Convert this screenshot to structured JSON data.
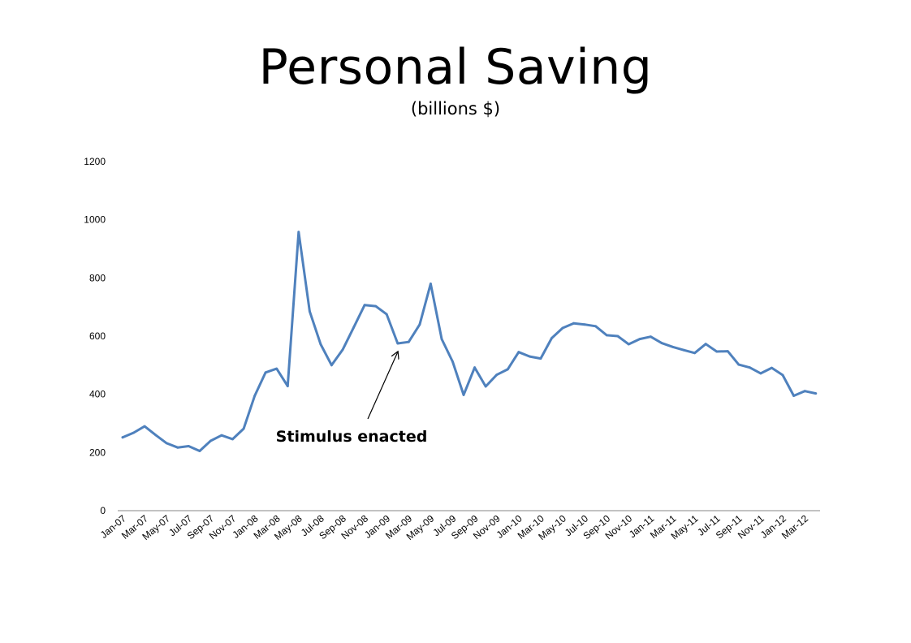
{
  "title": "Personal Saving",
  "subtitle": "(billions $)",
  "chart_data": {
    "type": "line",
    "title": "Personal Saving",
    "subtitle": "(billions $)",
    "ylim": [
      0,
      1200
    ],
    "yticks": [
      0,
      200,
      400,
      600,
      800,
      1000,
      1200
    ],
    "grid": false,
    "legend": "none",
    "line_color": "#4F81BD",
    "x": [
      "Jan-07",
      "Feb-07",
      "Mar-07",
      "Apr-07",
      "May-07",
      "Jun-07",
      "Jul-07",
      "Aug-07",
      "Sep-07",
      "Oct-07",
      "Nov-07",
      "Dec-07",
      "Jan-08",
      "Feb-08",
      "Mar-08",
      "Apr-08",
      "May-08",
      "Jun-08",
      "Jul-08",
      "Aug-08",
      "Sep-08",
      "Oct-08",
      "Nov-08",
      "Dec-08",
      "Jan-09",
      "Feb-09",
      "Mar-09",
      "Apr-09",
      "May-09",
      "Jun-09",
      "Jul-09",
      "Aug-09",
      "Sep-09",
      "Oct-09",
      "Nov-09",
      "Dec-09",
      "Jan-10",
      "Feb-10",
      "Mar-10",
      "Apr-10",
      "May-10",
      "Jun-10",
      "Jul-10",
      "Aug-10",
      "Sep-10",
      "Oct-10",
      "Nov-10",
      "Dec-10",
      "Jan-11",
      "Feb-11",
      "Mar-11",
      "Apr-11",
      "May-11",
      "Jun-11",
      "Jul-11",
      "Aug-11",
      "Sep-11",
      "Oct-11",
      "Nov-11",
      "Dec-11",
      "Jan-12",
      "Feb-12",
      "Mar-12",
      "Apr-12"
    ],
    "xtick_labels": [
      "Jan-07",
      "Mar-07",
      "May-07",
      "Jul-07",
      "Sep-07",
      "Nov-07",
      "Jan-08",
      "Mar-08",
      "May-08",
      "Jul-08",
      "Sep-08",
      "Nov-08",
      "Jan-09",
      "Mar-09",
      "May-09",
      "Jul-09",
      "Sep-09",
      "Nov-09",
      "Jan-10",
      "Mar-10",
      "May-10",
      "Jul-10",
      "Sep-10",
      "Nov-10",
      "Jan-11",
      "Mar-11",
      "May-11",
      "Jul-11",
      "Sep-11",
      "Nov-11",
      "Jan-12",
      "Mar-12"
    ],
    "series": [
      {
        "values": [
          252,
          268,
          290,
          260,
          232,
          217,
          222,
          205,
          240,
          259,
          246,
          282,
          394,
          475,
          488,
          428,
          958,
          685,
          572,
          500,
          553,
          630,
          707,
          703,
          675,
          575,
          580,
          640,
          780,
          590,
          512,
          398,
          492,
          427,
          467,
          486,
          545,
          530,
          523,
          593,
          628,
          644,
          640,
          634,
          603,
          600,
          572,
          590,
          598,
          576,
          563,
          552,
          542,
          573,
          547,
          548,
          502,
          492,
          472,
          491,
          466,
          395,
          411,
          403
        ]
      }
    ],
    "annotations": [
      {
        "text": "Stimulus enacted",
        "x": "Feb-09",
        "y": 545
      }
    ]
  }
}
